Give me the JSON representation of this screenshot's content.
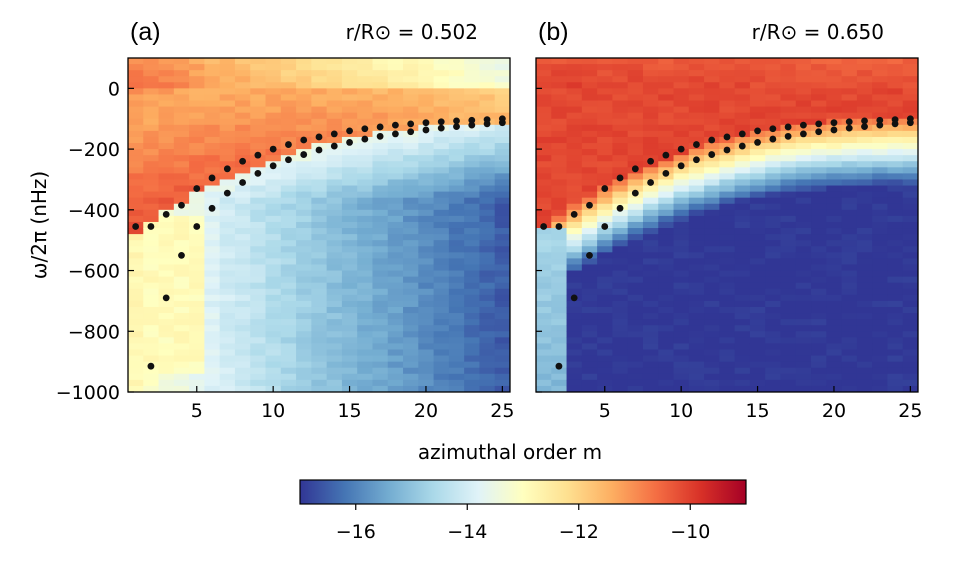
{
  "chart_data": {
    "type": "heatmap",
    "xlabel": "azimuthal order m",
    "ylabel_text": "ω/2π (nHz)",
    "xlim": [
      0.5,
      25.5
    ],
    "ylim": [
      -1000,
      100
    ],
    "xticks": [
      5,
      10,
      15,
      20,
      25
    ],
    "xtick_labels": [
      "5",
      "10",
      "15",
      "20",
      "25"
    ],
    "yticks": [
      0,
      -200,
      -400,
      -600,
      -800,
      -1000
    ],
    "ytick_labels": [
      "0",
      "−200",
      "−400",
      "−600",
      "−800",
      "−1000"
    ],
    "colorbar": {
      "range": [
        -17,
        -9
      ],
      "ticks": [
        -16,
        -14,
        -12,
        -10
      ],
      "tick_labels": [
        "−16",
        "−14",
        "−12",
        "−10"
      ],
      "colormap": "RdYlBu_r"
    },
    "panels": [
      {
        "letter": "(a)",
        "radius_label": "r/R⊙ = 0.502",
        "radius_value": 0.502,
        "dots": [
          [
            1,
            -455
          ],
          [
            2,
            -455
          ],
          [
            3,
            -415
          ],
          [
            4,
            -385
          ],
          [
            5,
            -330
          ],
          [
            6,
            -295
          ],
          [
            7,
            -265
          ],
          [
            8,
            -240
          ],
          [
            9,
            -220
          ],
          [
            10,
            -200
          ],
          [
            11,
            -185
          ],
          [
            12,
            -170
          ],
          [
            13,
            -160
          ],
          [
            14,
            -150
          ],
          [
            15,
            -140
          ],
          [
            16,
            -133
          ],
          [
            17,
            -127
          ],
          [
            18,
            -121
          ],
          [
            19,
            -117
          ],
          [
            20,
            -113
          ],
          [
            21,
            -110
          ],
          [
            22,
            -107
          ],
          [
            23,
            -105
          ],
          [
            24,
            -103
          ],
          [
            25,
            -100
          ],
          [
            2,
            -915
          ],
          [
            3,
            -690
          ],
          [
            4,
            -550
          ],
          [
            5,
            -455
          ],
          [
            6,
            -395
          ],
          [
            7,
            -345
          ],
          [
            8,
            -310
          ],
          [
            9,
            -280
          ],
          [
            10,
            -255
          ],
          [
            11,
            -235
          ],
          [
            12,
            -218
          ],
          [
            13,
            -203
          ],
          [
            14,
            -190
          ],
          [
            15,
            -178
          ],
          [
            16,
            -167
          ],
          [
            17,
            -158
          ],
          [
            18,
            -150
          ],
          [
            19,
            -143
          ],
          [
            20,
            -137
          ],
          [
            21,
            -131
          ],
          [
            22,
            -126
          ],
          [
            23,
            -121
          ],
          [
            24,
            -117
          ],
          [
            25,
            -113
          ]
        ]
      },
      {
        "letter": "(b)",
        "radius_label": "r/R⊙ = 0.650",
        "radius_value": 0.65,
        "dots": [
          [
            1,
            -455
          ],
          [
            2,
            -455
          ],
          [
            3,
            -415
          ],
          [
            4,
            -385
          ],
          [
            5,
            -330
          ],
          [
            6,
            -295
          ],
          [
            7,
            -265
          ],
          [
            8,
            -240
          ],
          [
            9,
            -220
          ],
          [
            10,
            -200
          ],
          [
            11,
            -185
          ],
          [
            12,
            -170
          ],
          [
            13,
            -160
          ],
          [
            14,
            -150
          ],
          [
            15,
            -140
          ],
          [
            16,
            -133
          ],
          [
            17,
            -127
          ],
          [
            18,
            -121
          ],
          [
            19,
            -117
          ],
          [
            20,
            -113
          ],
          [
            21,
            -110
          ],
          [
            22,
            -107
          ],
          [
            23,
            -105
          ],
          [
            24,
            -103
          ],
          [
            25,
            -100
          ],
          [
            2,
            -915
          ],
          [
            3,
            -690
          ],
          [
            4,
            -550
          ],
          [
            5,
            -455
          ],
          [
            6,
            -395
          ],
          [
            7,
            -345
          ],
          [
            8,
            -310
          ],
          [
            9,
            -280
          ],
          [
            10,
            -255
          ],
          [
            11,
            -235
          ],
          [
            12,
            -218
          ],
          [
            13,
            -203
          ],
          [
            14,
            -190
          ],
          [
            15,
            -178
          ],
          [
            16,
            -167
          ],
          [
            17,
            -158
          ],
          [
            18,
            -150
          ],
          [
            19,
            -143
          ],
          [
            20,
            -137
          ],
          [
            21,
            -131
          ],
          [
            22,
            -126
          ],
          [
            23,
            -121
          ],
          [
            24,
            -117
          ],
          [
            25,
            -113
          ]
        ]
      }
    ]
  }
}
